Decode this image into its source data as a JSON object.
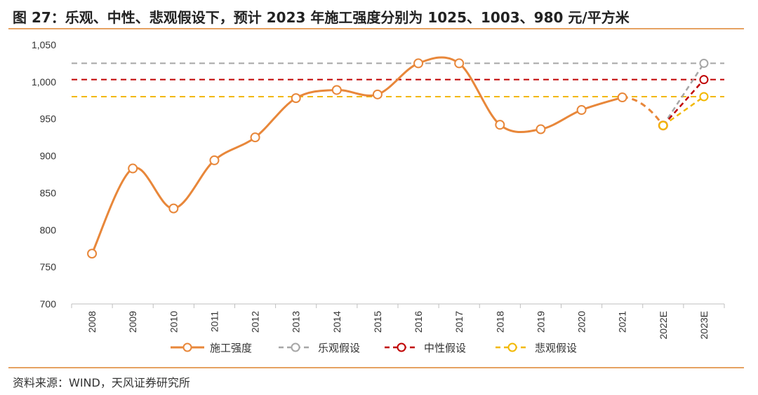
{
  "title": "图 27：乐观、中性、悲观假设下，预计 2023 年施工强度分别为 1025、1003、980 元/平方米",
  "source": "资料来源：WIND，天风证券研究所",
  "chart_data": {
    "type": "line",
    "categories": [
      "2008",
      "2009",
      "2010",
      "2011",
      "2012",
      "2013",
      "2014",
      "2015",
      "2016",
      "2017",
      "2018",
      "2019",
      "2020",
      "2021",
      "2022E",
      "2023E"
    ],
    "ylim": [
      700,
      1050
    ],
    "yticks": [
      700,
      750,
      800,
      850,
      900,
      950,
      1000,
      1050
    ],
    "ytick_labels": [
      "700",
      "750",
      "800",
      "850",
      "900",
      "950",
      "1,000",
      "1,050"
    ],
    "grid": false,
    "legend_position": "bottom",
    "series": [
      {
        "name": "施工强度",
        "color": "#e8873a",
        "values": [
          768,
          883,
          829,
          894,
          925,
          978,
          989,
          983,
          1025,
          1025,
          942,
          936,
          962,
          979,
          941,
          null
        ],
        "solid_through": "2021",
        "dashed_from": "2021"
      },
      {
        "name": "乐观假设",
        "color": "#a6a6a6",
        "reference_value": 1025,
        "values": [
          null,
          null,
          null,
          null,
          null,
          null,
          null,
          null,
          null,
          null,
          null,
          null,
          null,
          null,
          941,
          1025
        ]
      },
      {
        "name": "中性假设",
        "color": "#c00000",
        "reference_value": 1003,
        "values": [
          null,
          null,
          null,
          null,
          null,
          null,
          null,
          null,
          null,
          null,
          null,
          null,
          null,
          null,
          941,
          1003
        ]
      },
      {
        "name": "悲观假设",
        "color": "#f2b800",
        "reference_value": 980,
        "values": [
          null,
          null,
          null,
          null,
          null,
          null,
          null,
          null,
          null,
          null,
          null,
          null,
          null,
          null,
          941,
          980
        ]
      }
    ]
  }
}
